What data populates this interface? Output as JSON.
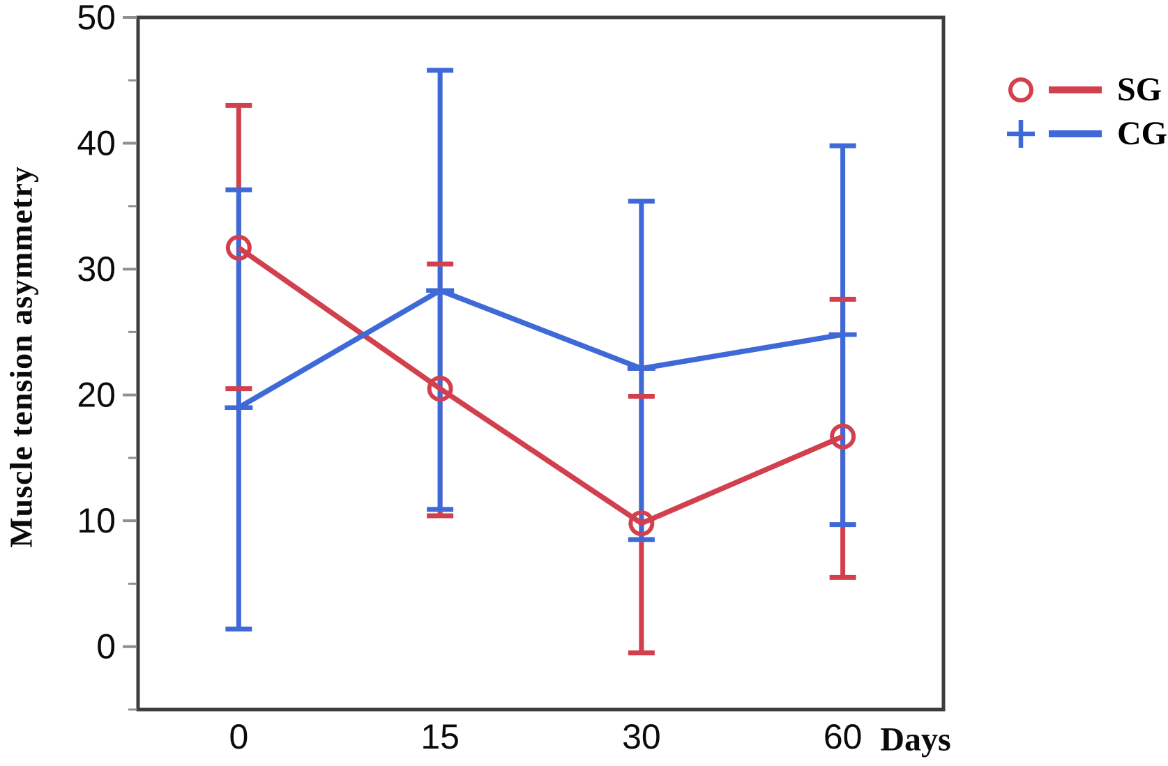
{
  "figure": {
    "background": "#ffffff",
    "axis_color": "#3d3d3d",
    "tick_color": "#909090",
    "text_color": "#0a0a0a"
  },
  "chart_data": {
    "type": "line",
    "title": "",
    "xlabel": "Days",
    "ylabel": "Muscle tension asymmetry",
    "x_tick_labels": [
      "0",
      "15",
      "30",
      "60"
    ],
    "y_ticks": [
      50,
      40,
      30,
      20,
      10,
      0
    ],
    "y_minor_ticks": [
      45,
      35,
      25,
      15,
      5,
      -5
    ],
    "ylim": [
      -5,
      50
    ],
    "grid": false,
    "error_bars": true,
    "legend_position": "outside-top-right",
    "categories": [
      0,
      15,
      30,
      60
    ],
    "series": [
      {
        "name": "SG",
        "color": "#d2404e",
        "marker": "circle",
        "means": [
          31.7,
          20.5,
          9.8,
          16.7
        ],
        "upper": [
          43.0,
          30.4,
          19.9,
          27.6
        ],
        "lower": [
          20.5,
          10.4,
          -0.5,
          5.5
        ]
      },
      {
        "name": "CG",
        "color": "#3e69d7",
        "marker": "plus",
        "means": [
          19.0,
          28.3,
          22.1,
          24.8
        ],
        "upper": [
          36.3,
          45.8,
          35.4,
          39.8
        ],
        "lower": [
          1.4,
          10.9,
          8.5,
          9.7
        ]
      }
    ]
  }
}
